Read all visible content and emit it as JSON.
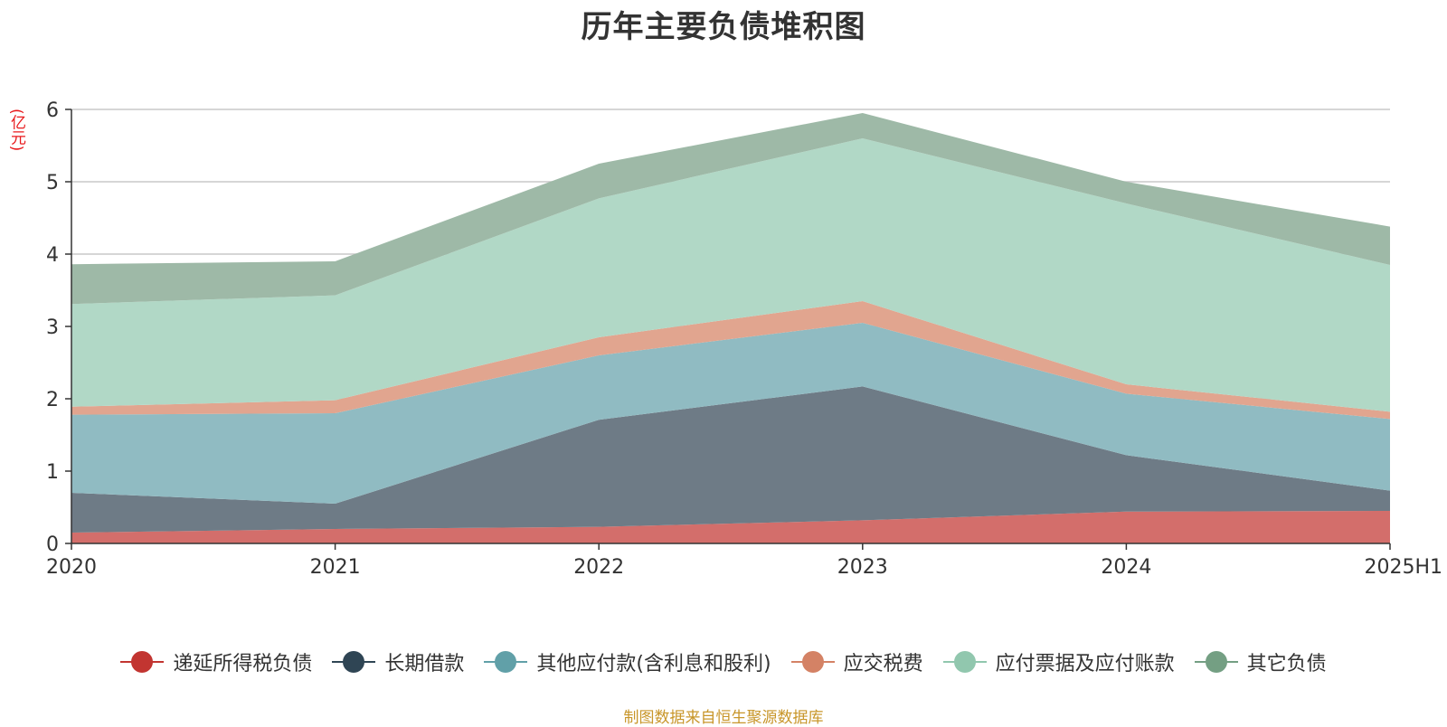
{
  "chart_data": {
    "type": "area",
    "stacked": true,
    "title": "历年主要负债堆积图",
    "y_unit": "(亿元)",
    "categories": [
      "2020",
      "2021",
      "2022",
      "2023",
      "2024",
      "2025H1"
    ],
    "ylim": [
      0,
      6
    ],
    "yticks": [
      0,
      1,
      2,
      3,
      4,
      5,
      6
    ],
    "grid": true,
    "legend_position": "bottom",
    "series": [
      {
        "name": "递延所得税负债",
        "color": "#c23531",
        "area_color": "#d36e6b",
        "values": [
          0.15,
          0.2,
          0.23,
          0.32,
          0.44,
          0.45
        ]
      },
      {
        "name": "长期借款",
        "color": "#2f4554",
        "area_color": "#6e7b86",
        "values": [
          0.55,
          0.35,
          1.48,
          1.85,
          0.78,
          0.28
        ]
      },
      {
        "name": "其他应付款(含利息和股利)",
        "color": "#61a0a8",
        "area_color": "#90bbc2",
        "values": [
          1.08,
          1.25,
          0.89,
          0.88,
          0.85,
          0.99
        ]
      },
      {
        "name": "应交税费",
        "color": "#d48265",
        "area_color": "#e1a58f",
        "values": [
          0.11,
          0.18,
          0.25,
          0.3,
          0.13,
          0.1
        ]
      },
      {
        "name": "应付票据及应付账款",
        "color": "#91c7ae",
        "area_color": "#b1d8c6",
        "values": [
          1.42,
          1.45,
          1.92,
          2.25,
          2.5,
          2.03
        ]
      },
      {
        "name": "其它负债",
        "color": "#749f83",
        "area_color": "#9eb9a7",
        "values": [
          0.55,
          0.47,
          0.48,
          0.35,
          0.3,
          0.53
        ]
      }
    ]
  },
  "footer": {
    "source": "制图数据来自恒生聚源数据库"
  }
}
